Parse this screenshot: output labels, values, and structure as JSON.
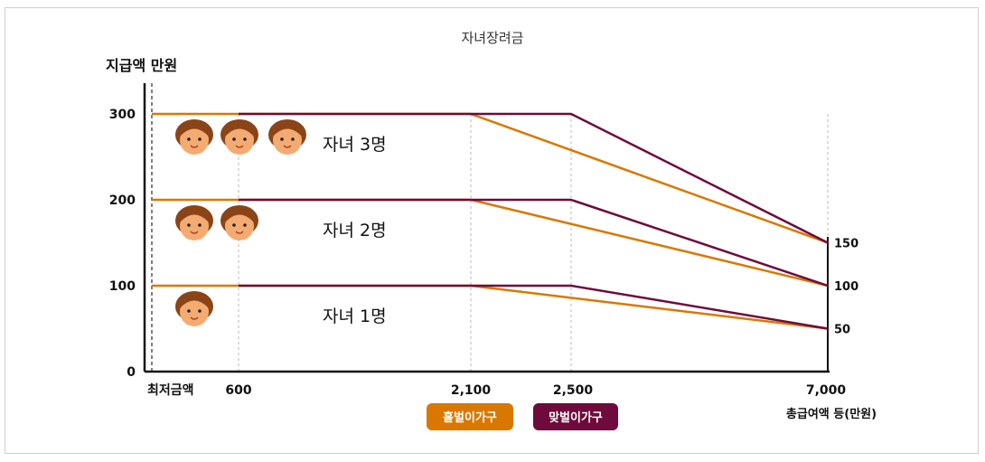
{
  "chart_data": {
    "type": "line",
    "title": "자녀장려금",
    "ylabel": "지급액 만원",
    "xlabel": "총급여액 등(만원)",
    "x_ticks": [
      "최저금액",
      "600",
      "2,100",
      "2,500",
      "7,000"
    ],
    "y_ticks": [
      "0",
      "100",
      "200",
      "300"
    ],
    "right_ticks": [
      "150",
      "100",
      "50"
    ],
    "series": [
      {
        "name": "홑벌이가구",
        "color": "#d97800",
        "groups": [
          {
            "children": 3,
            "points": [
              [
                0,
                300
              ],
              [
                2100,
                300
              ],
              [
                7000,
                150
              ]
            ]
          },
          {
            "children": 2,
            "points": [
              [
                0,
                200
              ],
              [
                2100,
                200
              ],
              [
                7000,
                100
              ]
            ]
          },
          {
            "children": 1,
            "points": [
              [
                0,
                100
              ],
              [
                2100,
                100
              ],
              [
                7000,
                50
              ]
            ]
          }
        ]
      },
      {
        "name": "맞벌이가구",
        "color": "#6e0a3c",
        "groups": [
          {
            "children": 3,
            "points": [
              [
                600,
                300
              ],
              [
                2500,
                300
              ],
              [
                7000,
                150
              ]
            ]
          },
          {
            "children": 2,
            "points": [
              [
                600,
                200
              ],
              [
                2500,
                200
              ],
              [
                7000,
                100
              ]
            ]
          },
          {
            "children": 1,
            "points": [
              [
                600,
                100
              ],
              [
                2500,
                100
              ],
              [
                7000,
                50
              ]
            ]
          }
        ]
      }
    ],
    "child_labels": [
      {
        "text": "자녀 3명",
        "count": 3,
        "y": 300
      },
      {
        "text": "자녀 2명",
        "count": 2,
        "y": 200
      },
      {
        "text": "자녀 1명",
        "count": 1,
        "y": 100
      }
    ],
    "grid": "dotted vertical guides",
    "legend": "bottom-center"
  }
}
